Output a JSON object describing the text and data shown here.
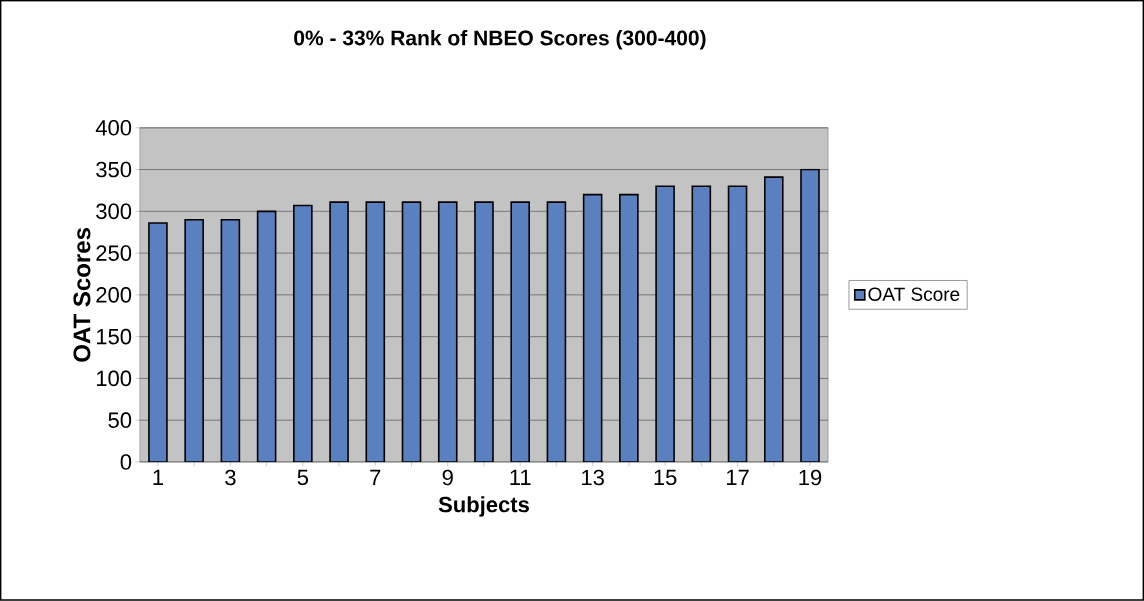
{
  "chart_data": {
    "type": "bar",
    "title": "0% - 33% Rank of NBEO Scores (300-400)",
    "xlabel": "Subjects",
    "ylabel": "OAT Scores",
    "categories": [
      "1",
      null,
      "3",
      null,
      "5",
      null,
      "7",
      null,
      "9",
      null,
      "11",
      null,
      "13",
      null,
      "15",
      null,
      "17",
      null,
      "19"
    ],
    "series": [
      {
        "name": "OAT Score",
        "color": "#5b80c0",
        "values": [
          286,
          290,
          290,
          300,
          307,
          311,
          311,
          311,
          311,
          311,
          311,
          311,
          320,
          320,
          330,
          330,
          330,
          341,
          350
        ]
      }
    ],
    "ylim": [
      0,
      400
    ],
    "yticks": [
      0,
      50,
      100,
      150,
      200,
      250,
      300,
      350,
      400
    ],
    "grid": "y",
    "legend": "right"
  }
}
